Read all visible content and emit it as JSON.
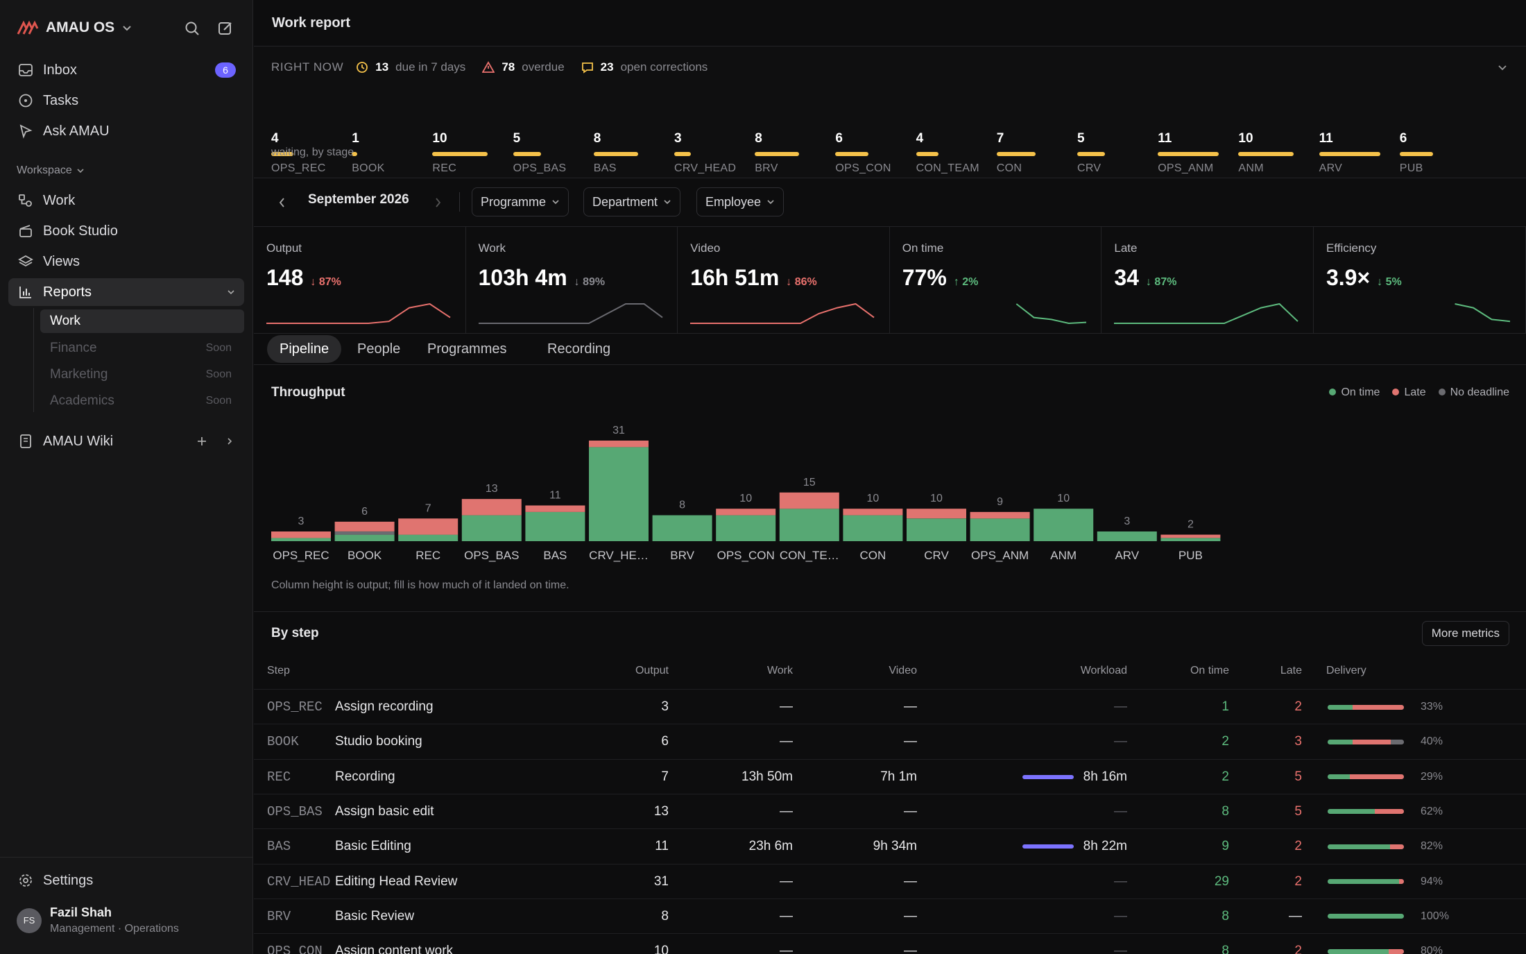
{
  "app": {
    "name": "AMAU OS"
  },
  "sidebar": {
    "nav": [
      {
        "label": "Inbox",
        "badge": "6"
      },
      {
        "label": "Tasks"
      },
      {
        "label": "Ask AMAU"
      }
    ],
    "workspace_label": "Workspace",
    "workspace": [
      {
        "label": "Work"
      },
      {
        "label": "Book Studio"
      },
      {
        "label": "Views"
      },
      {
        "label": "Reports"
      }
    ],
    "reports_sub": [
      {
        "label": "Work",
        "soon": ""
      },
      {
        "label": "Finance",
        "soon": "Soon"
      },
      {
        "label": "Marketing",
        "soon": "Soon"
      },
      {
        "label": "Academics",
        "soon": "Soon"
      }
    ],
    "wiki": "AMAU Wiki",
    "settings": "Settings",
    "user": {
      "initials": "FS",
      "name": "Fazil Shah",
      "role": "Management · Operations"
    }
  },
  "header": {
    "title": "Work report"
  },
  "right_now": {
    "label": "RIGHT NOW",
    "due_count": "13",
    "due_text": "due in 7 days",
    "overdue_count": "78",
    "overdue_text": "overdue",
    "corrections_count": "23",
    "corrections_text": "open corrections",
    "caption": "waiting, by stage",
    "stages": [
      {
        "code": "OPS_REC",
        "count": "4"
      },
      {
        "code": "BOOK",
        "count": "1"
      },
      {
        "code": "REC",
        "count": "10"
      },
      {
        "code": "OPS_BAS",
        "count": "5"
      },
      {
        "code": "BAS",
        "count": "8"
      },
      {
        "code": "CRV_HEAD",
        "count": "3"
      },
      {
        "code": "BRV",
        "count": "8"
      },
      {
        "code": "OPS_CON",
        "count": "6"
      },
      {
        "code": "CON_TEAM",
        "count": "4"
      },
      {
        "code": "CON",
        "count": "7"
      },
      {
        "code": "CRV",
        "count": "5"
      },
      {
        "code": "OPS_ANM",
        "count": "11"
      },
      {
        "code": "ANM",
        "count": "10"
      },
      {
        "code": "ARV",
        "count": "11"
      },
      {
        "code": "PUB",
        "count": "6"
      }
    ]
  },
  "filters": {
    "month": "September 2026",
    "programme": "Programme",
    "department": "Department",
    "employee": "Employee"
  },
  "kpis": [
    {
      "title": "Output",
      "value": "148",
      "delta": "87%",
      "dir": "down",
      "color": "#e9716d"
    },
    {
      "title": "Work",
      "value": "103h 4m",
      "delta": "89%",
      "dir": "down",
      "color": "#8a8a90"
    },
    {
      "title": "Video",
      "value": "16h 51m",
      "delta": "86%",
      "dir": "down",
      "color": "#e9716d"
    },
    {
      "title": "On time",
      "value": "77%",
      "delta": "2%",
      "dir": "up",
      "color": "#5dbb7e"
    },
    {
      "title": "Late",
      "value": "34",
      "delta": "87%",
      "dir": "down",
      "color": "#5dbb7e"
    },
    {
      "title": "Efficiency",
      "value": "3.9×",
      "delta": "5%",
      "dir": "down",
      "color": "#5dbb7e"
    }
  ],
  "tabs": [
    "Pipeline",
    "People",
    "Programmes",
    "Recording"
  ],
  "chart_data": {
    "type": "bar",
    "title": "Throughput",
    "categories": [
      "OPS_REC",
      "BOOK",
      "REC",
      "OPS_BAS",
      "BAS",
      "CRV_HE…",
      "BRV",
      "OPS_CON",
      "CON_TE…",
      "CON",
      "CRV",
      "OPS_ANM",
      "ANM",
      "ARV",
      "PUB"
    ],
    "totals": [
      3,
      6,
      7,
      13,
      11,
      31,
      8,
      10,
      15,
      10,
      10,
      9,
      10,
      3,
      2
    ],
    "series": [
      {
        "name": "On time",
        "color": "#57a874",
        "values": [
          1,
          2,
          2,
          8,
          9,
          29,
          8,
          8,
          10,
          8,
          7,
          7,
          10,
          3,
          1
        ]
      },
      {
        "name": "Late",
        "color": "#e07470",
        "values": [
          2,
          3,
          5,
          5,
          2,
          2,
          0,
          2,
          5,
          2,
          3,
          2,
          0,
          0,
          1
        ]
      },
      {
        "name": "No deadline",
        "color": "#6b6b70",
        "values": [
          0,
          1,
          0,
          0,
          0,
          0,
          0,
          0,
          0,
          0,
          0,
          0,
          0,
          0,
          0
        ]
      }
    ],
    "ylim": [
      0,
      31
    ],
    "note": "Column height is output; fill is how much of it landed on time."
  },
  "by_step": {
    "title": "By step",
    "more": "More metrics",
    "columns": [
      "Step",
      "Output",
      "Work",
      "Video",
      "Workload",
      "On time",
      "Late",
      "Delivery"
    ],
    "rows": [
      {
        "code": "OPS_REC",
        "name": "Assign recording",
        "output": "3",
        "work": "—",
        "video": "—",
        "workload": "—",
        "ontime": "1",
        "late": "2",
        "pct": "33%",
        "on_frac": 0.33,
        "late_frac": 0.67,
        "nd_frac": 0
      },
      {
        "code": "BOOK",
        "name": "Studio booking",
        "output": "6",
        "work": "—",
        "video": "—",
        "workload": "—",
        "ontime": "2",
        "late": "3",
        "pct": "40%",
        "on_frac": 0.33,
        "late_frac": 0.5,
        "nd_frac": 0.17
      },
      {
        "code": "REC",
        "name": "Recording",
        "output": "7",
        "work": "13h 50m",
        "video": "7h 1m",
        "workload": "8h 16m",
        "ontime": "2",
        "late": "5",
        "pct": "29%",
        "on_frac": 0.29,
        "late_frac": 0.71,
        "nd_frac": 0,
        "load": 0.7
      },
      {
        "code": "OPS_BAS",
        "name": "Assign basic edit",
        "output": "13",
        "work": "—",
        "video": "—",
        "workload": "—",
        "ontime": "8",
        "late": "5",
        "pct": "62%",
        "on_frac": 0.62,
        "late_frac": 0.38,
        "nd_frac": 0
      },
      {
        "code": "BAS",
        "name": "Basic Editing",
        "output": "11",
        "work": "23h 6m",
        "video": "9h 34m",
        "workload": "8h 22m",
        "ontime": "9",
        "late": "2",
        "pct": "82%",
        "on_frac": 0.82,
        "late_frac": 0.18,
        "nd_frac": 0,
        "load": 0.7
      },
      {
        "code": "CRV_HEAD",
        "name": "Editing Head Review",
        "output": "31",
        "work": "—",
        "video": "—",
        "workload": "—",
        "ontime": "29",
        "late": "2",
        "pct": "94%",
        "on_frac": 0.94,
        "late_frac": 0.06,
        "nd_frac": 0
      },
      {
        "code": "BRV",
        "name": "Basic Review",
        "output": "8",
        "work": "—",
        "video": "—",
        "workload": "—",
        "ontime": "8",
        "late": "—",
        "pct": "100%",
        "on_frac": 1,
        "late_frac": 0,
        "nd_frac": 0
      },
      {
        "code": "OPS_CON",
        "name": "Assign content work",
        "output": "10",
        "work": "—",
        "video": "—",
        "workload": "—",
        "ontime": "8",
        "late": "2",
        "pct": "80%",
        "on_frac": 0.8,
        "late_frac": 0.2,
        "nd_frac": 0
      }
    ]
  },
  "legend": [
    "On time",
    "Late",
    "No deadline"
  ]
}
